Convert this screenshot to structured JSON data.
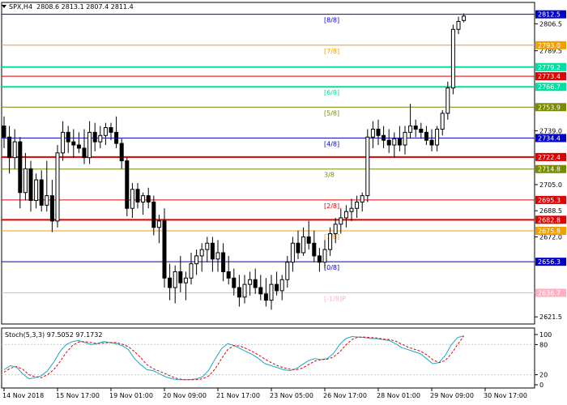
{
  "header": {
    "symbol_text": "SPX,H4",
    "ohlc_text": "2808.6 2813.1 2807.4 2811.4"
  },
  "indicator": {
    "label": "Stoch(5,3,3)",
    "values_text": "97.5052 97.1732"
  },
  "colors": {
    "bull_body": "#ffffff",
    "bear_body": "#000000",
    "wick": "#000000",
    "stoch_main": "#1ba7c9",
    "stoch_signal": "#e00000",
    "grid": "#c8c8c8"
  },
  "chart_data": [
    {
      "type": "candlestick",
      "title": "SPX,H4",
      "ylim": [
        2617,
        2820
      ],
      "ytick_labels": [
        "2806.5",
        "2789.5",
        "2739.0",
        "2705.0",
        "2688.5",
        "2672.0",
        "2621.5"
      ],
      "yticks": [
        2806.5,
        2789.5,
        2739.0,
        2705.0,
        2688.5,
        2672.0,
        2621.5
      ],
      "xtick_labels": [
        "14 Nov 2018",
        "15 Nov 17:00",
        "19 Nov 01:00",
        "20 Nov 09:00",
        "21 Nov 17:00",
        "23 Nov 05:00",
        "26 Nov 17:00",
        "28 Nov 01:00",
        "29 Nov 09:00",
        "30 Nov 17:00"
      ],
      "xtick_bars": [
        0,
        10,
        20,
        30,
        40,
        50,
        60,
        70,
        80,
        90
      ],
      "candles": [
        [
          2742,
          2748,
          2728,
          2735
        ],
        [
          2735,
          2742,
          2712,
          2722
        ],
        [
          2722,
          2740,
          2715,
          2732
        ],
        [
          2732,
          2735,
          2690,
          2700
        ],
        [
          2700,
          2725,
          2695,
          2715
        ],
        [
          2715,
          2720,
          2688,
          2695
        ],
        [
          2695,
          2712,
          2690,
          2708
        ],
        [
          2708,
          2714,
          2688,
          2692
        ],
        [
          2692,
          2720,
          2688,
          2698
        ],
        [
          2698,
          2708,
          2675,
          2682
        ],
        [
          2682,
          2730,
          2678,
          2725
        ],
        [
          2725,
          2745,
          2720,
          2738
        ],
        [
          2738,
          2742,
          2725,
          2732
        ],
        [
          2732,
          2740,
          2722,
          2730
        ],
        [
          2730,
          2738,
          2725,
          2728
        ],
        [
          2728,
          2740,
          2718,
          2722
        ],
        [
          2722,
          2745,
          2718,
          2738
        ],
        [
          2738,
          2744,
          2726,
          2732
        ],
        [
          2732,
          2742,
          2728,
          2736
        ],
        [
          2736,
          2744,
          2730,
          2741
        ],
        [
          2741,
          2744,
          2733,
          2738
        ],
        [
          2738,
          2748,
          2728,
          2731
        ],
        [
          2731,
          2734,
          2715,
          2720
        ],
        [
          2720,
          2722,
          2685,
          2690
        ],
        [
          2690,
          2706,
          2684,
          2702
        ],
        [
          2702,
          2706,
          2690,
          2694
        ],
        [
          2694,
          2700,
          2686,
          2698
        ],
        [
          2698,
          2703,
          2690,
          2694
        ],
        [
          2694,
          2698,
          2673,
          2678
        ],
        [
          2678,
          2686,
          2668,
          2682
        ],
        [
          2682,
          2690,
          2640,
          2646
        ],
        [
          2646,
          2655,
          2632,
          2640
        ],
        [
          2640,
          2654,
          2630,
          2650
        ],
        [
          2650,
          2660,
          2637,
          2643
        ],
        [
          2643,
          2650,
          2632,
          2646
        ],
        [
          2646,
          2662,
          2642,
          2655
        ],
        [
          2655,
          2664,
          2648,
          2660
        ],
        [
          2660,
          2668,
          2650,
          2664
        ],
        [
          2664,
          2672,
          2656,
          2668
        ],
        [
          2668,
          2672,
          2650,
          2658
        ],
        [
          2658,
          2670,
          2650,
          2662
        ],
        [
          2662,
          2668,
          2644,
          2650
        ],
        [
          2650,
          2660,
          2642,
          2646
        ],
        [
          2646,
          2652,
          2635,
          2640
        ],
        [
          2640,
          2648,
          2628,
          2634
        ],
        [
          2634,
          2648,
          2630,
          2642
        ],
        [
          2642,
          2650,
          2635,
          2645
        ],
        [
          2645,
          2652,
          2636,
          2640
        ],
        [
          2640,
          2648,
          2632,
          2636
        ],
        [
          2636,
          2646,
          2628,
          2632
        ],
        [
          2632,
          2648,
          2626,
          2642
        ],
        [
          2642,
          2650,
          2635,
          2638
        ],
        [
          2638,
          2648,
          2632,
          2645
        ],
        [
          2645,
          2660,
          2640,
          2656
        ],
        [
          2656,
          2672,
          2650,
          2668
        ],
        [
          2668,
          2676,
          2658,
          2662
        ],
        [
          2662,
          2678,
          2660,
          2672
        ],
        [
          2672,
          2682,
          2664,
          2668
        ],
        [
          2668,
          2676,
          2656,
          2660
        ],
        [
          2660,
          2665,
          2650,
          2656
        ],
        [
          2656,
          2670,
          2652,
          2664
        ],
        [
          2664,
          2678,
          2660,
          2674
        ],
        [
          2674,
          2684,
          2668,
          2680
        ],
        [
          2680,
          2690,
          2674,
          2684
        ],
        [
          2684,
          2692,
          2678,
          2688
        ],
        [
          2688,
          2696,
          2682,
          2690
        ],
        [
          2690,
          2698,
          2684,
          2694
        ],
        [
          2694,
          2700,
          2688,
          2698
        ],
        [
          2698,
          2740,
          2694,
          2735
        ],
        [
          2735,
          2745,
          2728,
          2740
        ],
        [
          2740,
          2746,
          2730,
          2736
        ],
        [
          2736,
          2742,
          2728,
          2733
        ],
        [
          2733,
          2740,
          2725,
          2730
        ],
        [
          2730,
          2738,
          2722,
          2734
        ],
        [
          2734,
          2742,
          2726,
          2730
        ],
        [
          2730,
          2742,
          2724,
          2738
        ],
        [
          2738,
          2756,
          2734,
          2742
        ],
        [
          2742,
          2746,
          2735,
          2740
        ],
        [
          2740,
          2744,
          2734,
          2738
        ],
        [
          2738,
          2742,
          2730,
          2733
        ],
        [
          2733,
          2740,
          2726,
          2730
        ],
        [
          2730,
          2742,
          2726,
          2740
        ],
        [
          2740,
          2752,
          2736,
          2750
        ],
        [
          2750,
          2770,
          2746,
          2766
        ],
        [
          2766,
          2806,
          2762,
          2803
        ],
        [
          2803,
          2811,
          2800,
          2808
        ],
        [
          2808.6,
          2813.1,
          2807.4,
          2811.4
        ]
      ],
      "murrey_levels": [
        {
          "label": "[8/8]",
          "value": 2812.5,
          "price_text": "2812.5",
          "color": "#0000c8",
          "width": 1
        },
        {
          "label": "[7/8]",
          "value": 2793.0,
          "price_text": "2793.0",
          "color": "#f0a000",
          "width": 1
        },
        {
          "label": "",
          "value": 2779.2,
          "price_text": "2779.2",
          "color": "#00e0a0",
          "width": 2
        },
        {
          "label": "",
          "value": 2773.4,
          "price_text": "2773.4",
          "color": "#e00000",
          "width": 1
        },
        {
          "label": "[6/8]",
          "value": 2766.7,
          "price_text": "2766.7",
          "color": "#00e0a0",
          "width": 2
        },
        {
          "label": "[5/8]",
          "value": 2753.9,
          "price_text": "2753.9",
          "color": "#7a8a00",
          "width": 1
        },
        {
          "label": "[4/8]",
          "value": 2734.4,
          "price_text": "2734.4",
          "color": "#0000c8",
          "width": 1
        },
        {
          "label": "",
          "value": 2722.4,
          "price_text": "2722.4",
          "color": "#e00000",
          "width": 2
        },
        {
          "label": "3/8",
          "value": 2714.8,
          "price_text": "2714.8",
          "color": "#7a8a00",
          "width": 1
        },
        {
          "label": "[2/8]",
          "value": 2695.3,
          "price_text": "2695.3",
          "color": "#e00000",
          "width": 1
        },
        {
          "label": "",
          "value": 2682.8,
          "price_text": "2682.8",
          "color": "#e00000",
          "width": 2
        },
        {
          "label": "[1/8]",
          "value": 2675.8,
          "price_text": "2675.8",
          "color": "#f0a000",
          "width": 1
        },
        {
          "label": "[0/8]",
          "value": 2656.3,
          "price_text": "2656.3",
          "color": "#0000c8",
          "width": 1
        },
        {
          "label": "[-1/8]P",
          "value": 2636.7,
          "price_text": "2636.7",
          "color": "#ffb0c0",
          "width": 1
        }
      ]
    },
    {
      "type": "line",
      "title": "Stoch(5,3,3)",
      "ylim": [
        0,
        100
      ],
      "ytick_labels": [
        "100",
        "80",
        "20",
        "0"
      ],
      "yticks": [
        100,
        80,
        20,
        0
      ],
      "levels": [
        80,
        20
      ],
      "series": [
        {
          "name": "main",
          "values": [
            30,
            38,
            35,
            22,
            12,
            14,
            18,
            28,
            45,
            66,
            80,
            86,
            88,
            84,
            80,
            82,
            86,
            84,
            82,
            78,
            70,
            52,
            40,
            30,
            28,
            22,
            16,
            12,
            10,
            10,
            10,
            12,
            16,
            30,
            52,
            72,
            82,
            78,
            72,
            66,
            60,
            52,
            42,
            38,
            34,
            30,
            28,
            32,
            40,
            48,
            52,
            50,
            52,
            62,
            80,
            92,
            96,
            95,
            94,
            92,
            92,
            90,
            88,
            82,
            74,
            70,
            66,
            62,
            52,
            42,
            44,
            58,
            80,
            94,
            97.5
          ]
        },
        {
          "name": "signal",
          "values": [
            25,
            33,
            36,
            31,
            20,
            16,
            14,
            20,
            30,
            46,
            64,
            78,
            85,
            86,
            84,
            82,
            83,
            84,
            84,
            81,
            76,
            66,
            54,
            40,
            32,
            27,
            22,
            16,
            12,
            10,
            10,
            10,
            12,
            18,
            32,
            52,
            70,
            78,
            77,
            72,
            66,
            59,
            51,
            44,
            38,
            34,
            31,
            30,
            33,
            40,
            47,
            50,
            51,
            55,
            65,
            79,
            90,
            95,
            95,
            94,
            93,
            91,
            90,
            87,
            81,
            75,
            71,
            67,
            60,
            50,
            44,
            48,
            62,
            80,
            97.2
          ]
        }
      ]
    }
  ]
}
